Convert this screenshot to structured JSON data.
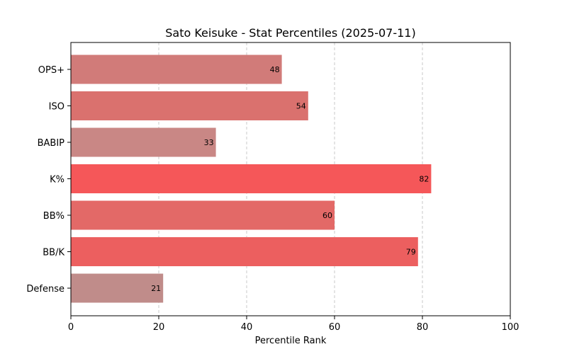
{
  "chart_data": {
    "type": "bar",
    "orientation": "horizontal",
    "title": "Sato Keisuke - Stat Percentiles (2025-07-11)",
    "xlabel": "Percentile Rank",
    "ylabel": "",
    "xlim": [
      0,
      100
    ],
    "xticks": [
      0,
      20,
      40,
      60,
      80,
      100
    ],
    "grid": "x-dashed",
    "categories": [
      "OPS+",
      "ISO",
      "BABIP",
      "K%",
      "BB%",
      "BB/K",
      "Defense"
    ],
    "values": [
      48,
      54,
      33,
      82,
      60,
      79,
      21
    ],
    "colors": [
      "#d17b79",
      "#da716e",
      "#c98785",
      "#f55759",
      "#e36967",
      "#ec5f5f",
      "#c08c8a"
    ]
  }
}
